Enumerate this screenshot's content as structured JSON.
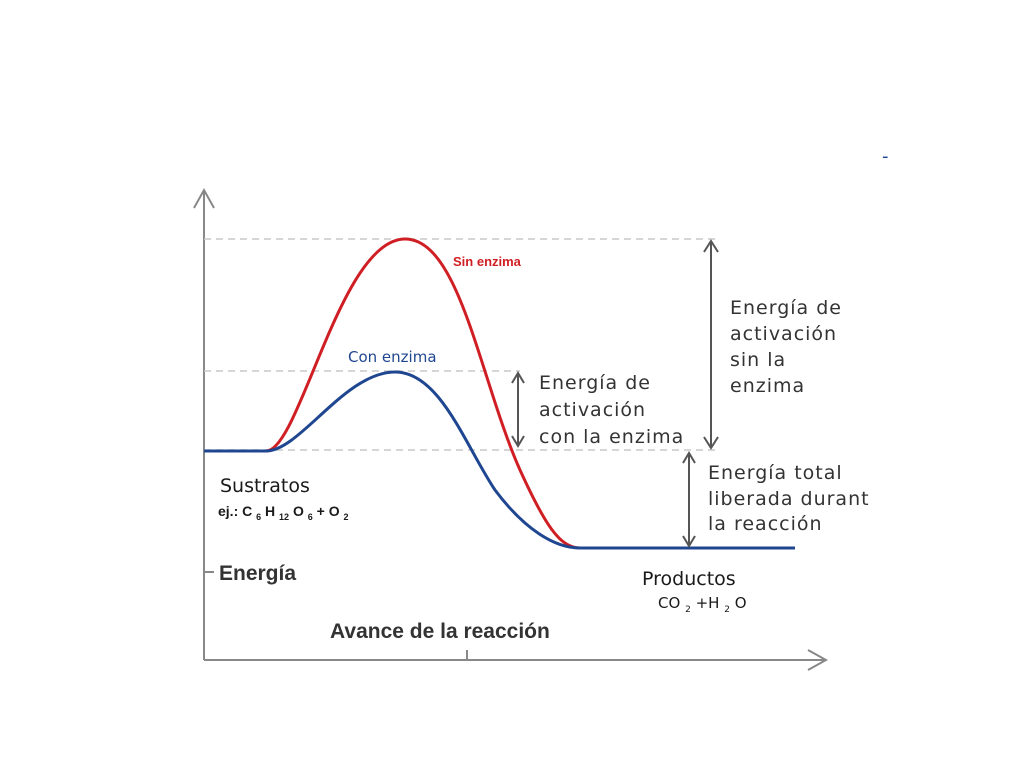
{
  "diagram": {
    "corner_mark": "-",
    "curves": [
      {
        "label": "Sin enzima",
        "color": "#d01f24"
      },
      {
        "label": "Con enzima",
        "color": "#1f4690"
      }
    ],
    "substrates": {
      "title": "Sustratos",
      "formula_prefix": "ej.: C",
      "formula_sub1": "6",
      "formula_h": "H",
      "formula_sub2": "12",
      "formula_o": "O",
      "formula_sub3": "6",
      "formula_rest": "+ O",
      "formula_sub4": "2"
    },
    "products": {
      "title": "Productos",
      "co": "CO",
      "co_sub": "2",
      "plus_h": "+H",
      "h_sub": "2",
      "o": "O"
    },
    "y_axis_label": "Energía",
    "x_axis_label": "Avance de la reacción",
    "annotations": {
      "activation_without": [
        "Energía de",
        "activación",
        "sin la",
        "enzima"
      ],
      "activation_with": [
        "Energía de",
        "activación",
        "con la enzima"
      ],
      "total_released": [
        "Energía total",
        "liberada durant",
        "la reacción"
      ]
    },
    "colors": {
      "axis": "#888888",
      "guides": "#c8c8c8",
      "arrows": "#555555",
      "text": "#333333"
    }
  }
}
